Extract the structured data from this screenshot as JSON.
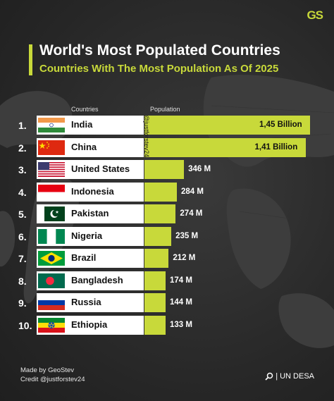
{
  "brand": {
    "logo": "GS"
  },
  "header": {
    "title": "World's Most Populated Countries",
    "subtitle": "Countries With The Most Population As Of 2025"
  },
  "columns": {
    "countries": "Countries",
    "population": "Population"
  },
  "watermark": "@justforstev24",
  "footer": {
    "made_by": "Made by GeoStev",
    "credit": "Credit @justforstev24",
    "source": "| UN DESA"
  },
  "colors": {
    "accent": "#c8d93a",
    "background": "#2a2a2a",
    "card": "#ffffff"
  },
  "chart_data": {
    "type": "bar",
    "orientation": "horizontal",
    "categories": [
      "India",
      "China",
      "United States",
      "Indonesia",
      "Pakistan",
      "Nigeria",
      "Brazil",
      "Bangladesh",
      "Russia",
      "Ethiopia"
    ],
    "ranks": [
      "1.",
      "2.",
      "3.",
      "4.",
      "5.",
      "6.",
      "7.",
      "8.",
      "9.",
      "10."
    ],
    "values_millions": [
      1450,
      1410,
      346,
      284,
      274,
      235,
      212,
      174,
      144,
      133
    ],
    "value_labels": [
      "1,45 Billion",
      "1,41 Billion",
      "346 M",
      "284 M",
      "274 M",
      "235 M",
      "212 M",
      "174 M",
      "144 M",
      "133 M"
    ],
    "flags": [
      "india",
      "china",
      "usa",
      "indonesia",
      "pakistan",
      "nigeria",
      "brazil",
      "bangladesh",
      "russia",
      "ethiopia"
    ],
    "xlabel": "",
    "ylabel": ""
  }
}
